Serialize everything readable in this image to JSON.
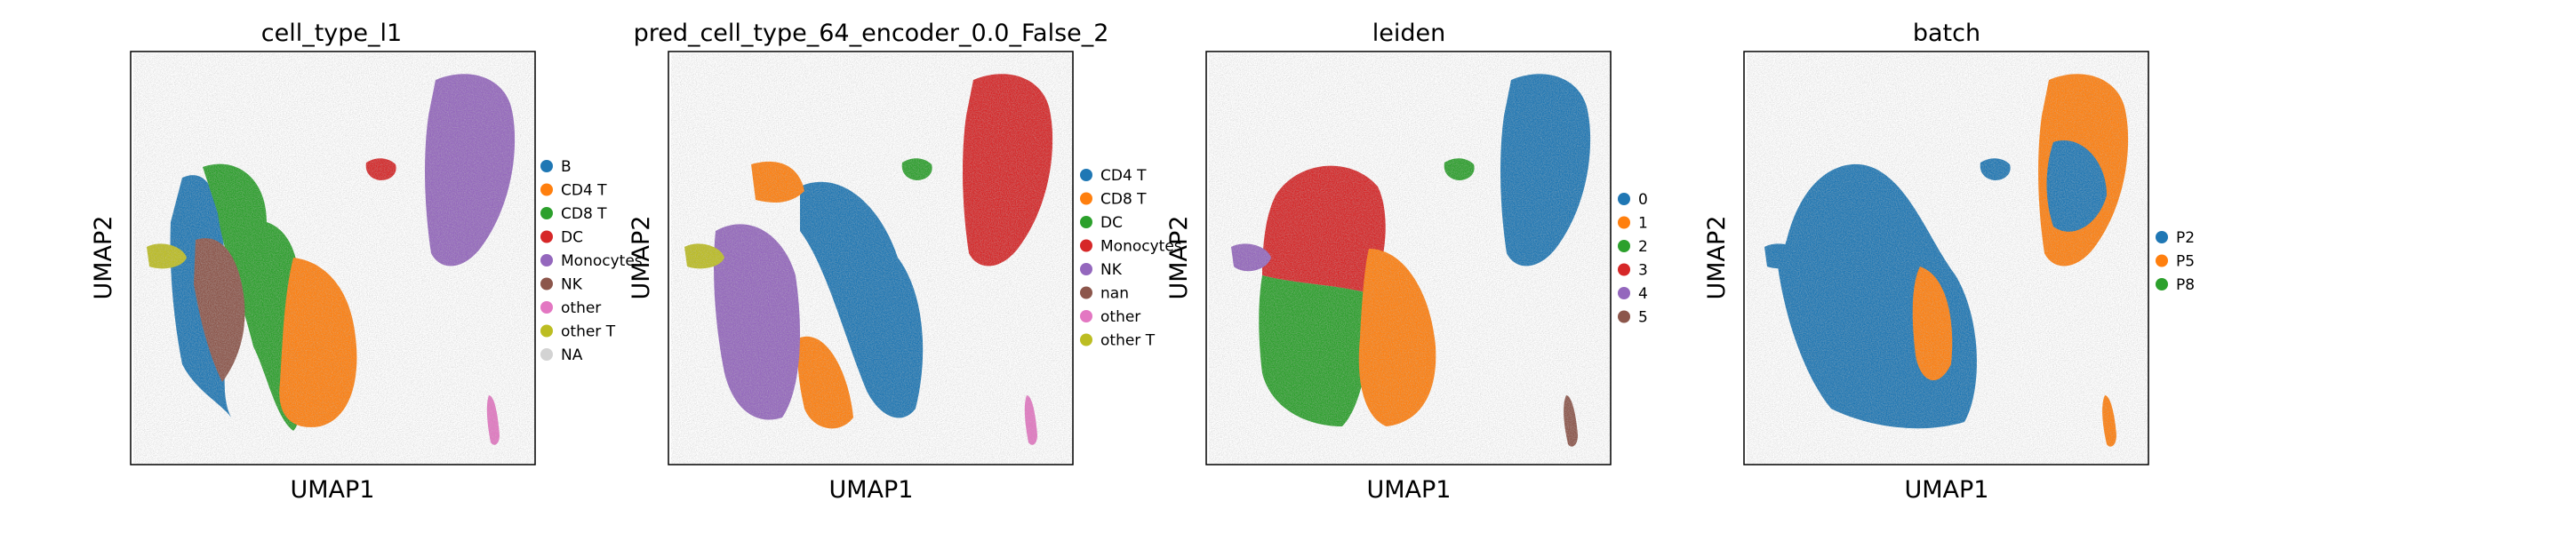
{
  "chart_data": [
    {
      "type": "scatter",
      "title": "cell_type_l1",
      "xlabel": "UMAP1",
      "ylabel": "UMAP2",
      "grid": false,
      "legend": "right",
      "legend_entries": [
        {
          "label": "B",
          "color": "#1f77b4"
        },
        {
          "label": "CD4 T",
          "color": "#ff7f0e"
        },
        {
          "label": "CD8 T",
          "color": "#2ca02c"
        },
        {
          "label": "DC",
          "color": "#d62728"
        },
        {
          "label": "Monocytes",
          "color": "#9467bd"
        },
        {
          "label": "NK",
          "color": "#8c564b"
        },
        {
          "label": "other",
          "color": "#e377c2"
        },
        {
          "label": "other T",
          "color": "#bcbd22"
        },
        {
          "label": "NA",
          "color": "#d3d3d3"
        }
      ],
      "clusters": [
        {
          "name": "B",
          "color": "#1f77b4"
        },
        {
          "name": "CD4 T",
          "color": "#ff7f0e"
        },
        {
          "name": "CD8 T",
          "color": "#2ca02c"
        },
        {
          "name": "DC",
          "color": "#d62728"
        },
        {
          "name": "Monocytes",
          "color": "#9467bd"
        },
        {
          "name": "NK",
          "color": "#8c564b"
        },
        {
          "name": "other",
          "color": "#e377c2"
        },
        {
          "name": "other T",
          "color": "#bcbd22"
        }
      ]
    },
    {
      "type": "scatter",
      "title": "pred_cell_type_64_encoder_0.0_False_2",
      "xlabel": "UMAP1",
      "ylabel": "UMAP2",
      "grid": false,
      "legend": "right",
      "legend_entries": [
        {
          "label": "CD4 T",
          "color": "#1f77b4"
        },
        {
          "label": "CD8 T",
          "color": "#ff7f0e"
        },
        {
          "label": "DC",
          "color": "#2ca02c"
        },
        {
          "label": "Monocytes",
          "color": "#d62728"
        },
        {
          "label": "NK",
          "color": "#9467bd"
        },
        {
          "label": "nan",
          "color": "#8c564b"
        },
        {
          "label": "other",
          "color": "#e377c2"
        },
        {
          "label": "other T",
          "color": "#bcbd22"
        }
      ],
      "clusters": [
        {
          "name": "CD4 T",
          "color": "#1f77b4"
        },
        {
          "name": "CD8 T",
          "color": "#ff7f0e"
        },
        {
          "name": "DC",
          "color": "#2ca02c"
        },
        {
          "name": "Monocytes",
          "color": "#d62728"
        },
        {
          "name": "NK",
          "color": "#9467bd"
        },
        {
          "name": "other",
          "color": "#e377c2"
        },
        {
          "name": "other T",
          "color": "#bcbd22"
        }
      ]
    },
    {
      "type": "scatter",
      "title": "leiden",
      "xlabel": "UMAP1",
      "ylabel": "UMAP2",
      "grid": false,
      "legend": "right",
      "legend_entries": [
        {
          "label": "0",
          "color": "#1f77b4"
        },
        {
          "label": "1",
          "color": "#ff7f0e"
        },
        {
          "label": "2",
          "color": "#2ca02c"
        },
        {
          "label": "3",
          "color": "#d62728"
        },
        {
          "label": "4",
          "color": "#9467bd"
        },
        {
          "label": "5",
          "color": "#8c564b"
        }
      ],
      "clusters": [
        {
          "name": "0",
          "color": "#1f77b4"
        },
        {
          "name": "1",
          "color": "#ff7f0e"
        },
        {
          "name": "2",
          "color": "#2ca02c"
        },
        {
          "name": "3",
          "color": "#d62728"
        },
        {
          "name": "4",
          "color": "#9467bd"
        },
        {
          "name": "5",
          "color": "#8c564b"
        }
      ]
    },
    {
      "type": "scatter",
      "title": "batch",
      "xlabel": "UMAP1",
      "ylabel": "UMAP2",
      "grid": false,
      "legend": "right",
      "legend_entries": [
        {
          "label": "P2",
          "color": "#1f77b4"
        },
        {
          "label": "P5",
          "color": "#ff7f0e"
        },
        {
          "label": "P8",
          "color": "#2ca02c"
        }
      ],
      "clusters": [
        {
          "name": "P2",
          "color": "#1f77b4"
        },
        {
          "name": "P5",
          "color": "#ff7f0e"
        },
        {
          "name": "P8",
          "color": "#2ca02c"
        }
      ]
    }
  ]
}
